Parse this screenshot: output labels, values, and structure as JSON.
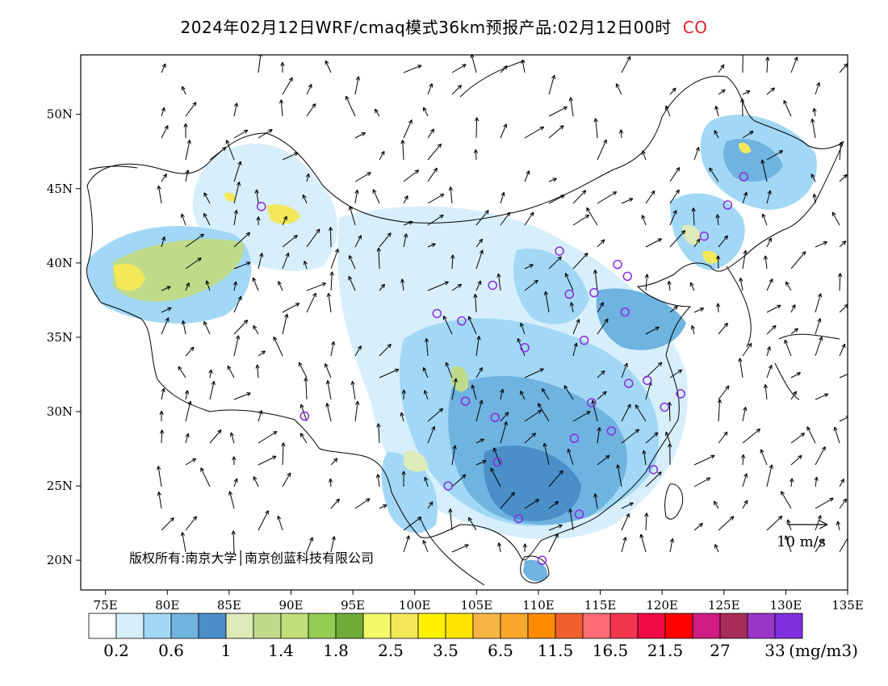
{
  "title": {
    "main": "2024年02月12日WRF/cmaq模式36km预报产品:02月12日00时",
    "species": "CO",
    "species_color": "#e0202a"
  },
  "map": {
    "lon_range": [
      73,
      135
    ],
    "lat_range": [
      18,
      54
    ],
    "x_ticks": [
      "75E",
      "80E",
      "85E",
      "90E",
      "95E",
      "100E",
      "105E",
      "110E",
      "115E",
      "120E",
      "125E",
      "130E",
      "135E"
    ],
    "x_tick_values": [
      75,
      80,
      85,
      90,
      95,
      100,
      105,
      110,
      115,
      120,
      125,
      130,
      135
    ],
    "y_ticks": [
      "20N",
      "25N",
      "30N",
      "35N",
      "40N",
      "45N",
      "50N"
    ],
    "y_tick_values": [
      20,
      25,
      30,
      35,
      40,
      45,
      50
    ],
    "copyright": "版权所有:南京大学│南京创蓝科技有限公司",
    "wind_legend": {
      "label": "10 m/s",
      "icon": "wind-arrow-icon"
    },
    "site_marker_icon": "monitoring-site-circle-icon",
    "site_marker_color": "#8a2be2",
    "sites": [
      [
        87.6,
        43.8
      ],
      [
        91.1,
        29.7
      ],
      [
        101.8,
        36.6
      ],
      [
        103.8,
        36.1
      ],
      [
        106.3,
        38.5
      ],
      [
        111.7,
        40.8
      ],
      [
        112.5,
        37.9
      ],
      [
        114.5,
        38.0
      ],
      [
        116.4,
        39.9
      ],
      [
        117.2,
        39.1
      ],
      [
        117.0,
        36.7
      ],
      [
        113.7,
        34.8
      ],
      [
        108.9,
        34.3
      ],
      [
        104.1,
        30.7
      ],
      [
        106.5,
        29.6
      ],
      [
        106.7,
        26.6
      ],
      [
        102.7,
        25.0
      ],
      [
        108.4,
        22.8
      ],
      [
        110.3,
        20.0
      ],
      [
        113.3,
        23.1
      ],
      [
        119.3,
        26.1
      ],
      [
        115.9,
        28.7
      ],
      [
        112.9,
        28.2
      ],
      [
        114.3,
        30.6
      ],
      [
        117.3,
        31.9
      ],
      [
        118.8,
        32.1
      ],
      [
        120.2,
        30.3
      ],
      [
        121.5,
        31.2
      ],
      [
        123.4,
        41.8
      ],
      [
        125.3,
        43.9
      ],
      [
        126.6,
        45.8
      ]
    ]
  },
  "colorbar": {
    "colors": [
      "#ffffff",
      "#d7effc",
      "#a2d8f5",
      "#6fb3e0",
      "#4a8fc8",
      "#deeab8",
      "#bfdb8a",
      "#c2e07a",
      "#92cc52",
      "#70aa38",
      "#f3fa6a",
      "#f2e85a",
      "#fff200",
      "#ffe500",
      "#f9b446",
      "#f9a72a",
      "#ff8c00",
      "#f0602d",
      "#ff6c73",
      "#f2364e",
      "#f00a44",
      "#ff0000",
      "#cf1c80",
      "#a82c5a",
      "#9a35c8",
      "#7f2fe0"
    ],
    "labels": [
      "0.2",
      "0.6",
      "1",
      "1.4",
      "1.8",
      "2.5",
      "3.5",
      "6.5",
      "11.5",
      "16.5",
      "21.5",
      "27",
      "33"
    ],
    "unit": "(mg/m3)"
  }
}
